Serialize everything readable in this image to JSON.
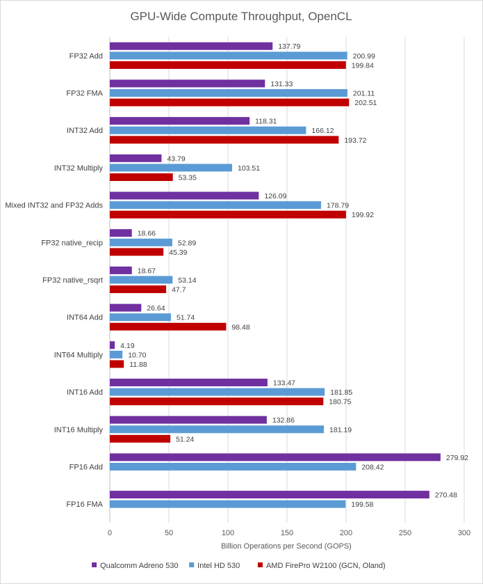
{
  "chart_data": {
    "type": "bar",
    "orientation": "horizontal",
    "title": "GPU-Wide Compute Throughput, OpenCL",
    "xlabel": "Billion Operations per Second (GOPS)",
    "ylabel": "",
    "xlim": [
      0,
      300
    ],
    "xticks": [
      0,
      50,
      100,
      150,
      200,
      250,
      300
    ],
    "grid": true,
    "legend_position": "bottom",
    "categories": [
      "FP32 Add",
      "FP32 FMA",
      "INT32 Add",
      "INT32 Multiply",
      "Mixed INT32 and FP32 Adds",
      "FP32 native_recip",
      "FP32 native_rsqrt",
      "INT64 Add",
      "INT64 Multiply",
      "INT16 Add",
      "INT16 Multiply",
      "FP16 Add",
      "FP16 FMA"
    ],
    "series": [
      {
        "name": "Qualcomm Adreno 530",
        "color": "#7030a0",
        "values": [
          137.79,
          131.33,
          118.31,
          43.79,
          126.09,
          18.66,
          18.67,
          26.64,
          4.19,
          133.47,
          132.86,
          279.92,
          270.48
        ],
        "labels": [
          "137.79",
          "131.33",
          "118.31",
          "43.79",
          "126.09",
          "18.66",
          "18.67",
          "26.64",
          "4.19",
          "133.47",
          "132.86",
          "279.92",
          "270.48"
        ]
      },
      {
        "name": "Intel HD 530",
        "color": "#5b9bd5",
        "values": [
          200.99,
          201.11,
          166.12,
          103.51,
          178.79,
          52.89,
          53.14,
          51.74,
          10.7,
          181.85,
          181.19,
          208.42,
          199.58
        ],
        "labels": [
          "200.99",
          "201.11",
          "166.12",
          "103.51",
          "178.79",
          "52.89",
          "53.14",
          "51.74",
          "10.70",
          "181.85",
          "181.19",
          "208.42",
          "199.58"
        ]
      },
      {
        "name": "AMD FirePro W2100 (GCN, Oland)",
        "color": "#c00000",
        "values": [
          199.84,
          202.51,
          193.72,
          53.35,
          199.92,
          45.39,
          47.7,
          98.48,
          11.88,
          180.75,
          51.24,
          null,
          null
        ],
        "labels": [
          "199.84",
          "202.51",
          "193.72",
          "53.35",
          "199.92",
          "45.39",
          "47.7",
          "98.48",
          "11.88",
          "180.75",
          "51.24",
          null,
          null
        ]
      }
    ]
  }
}
